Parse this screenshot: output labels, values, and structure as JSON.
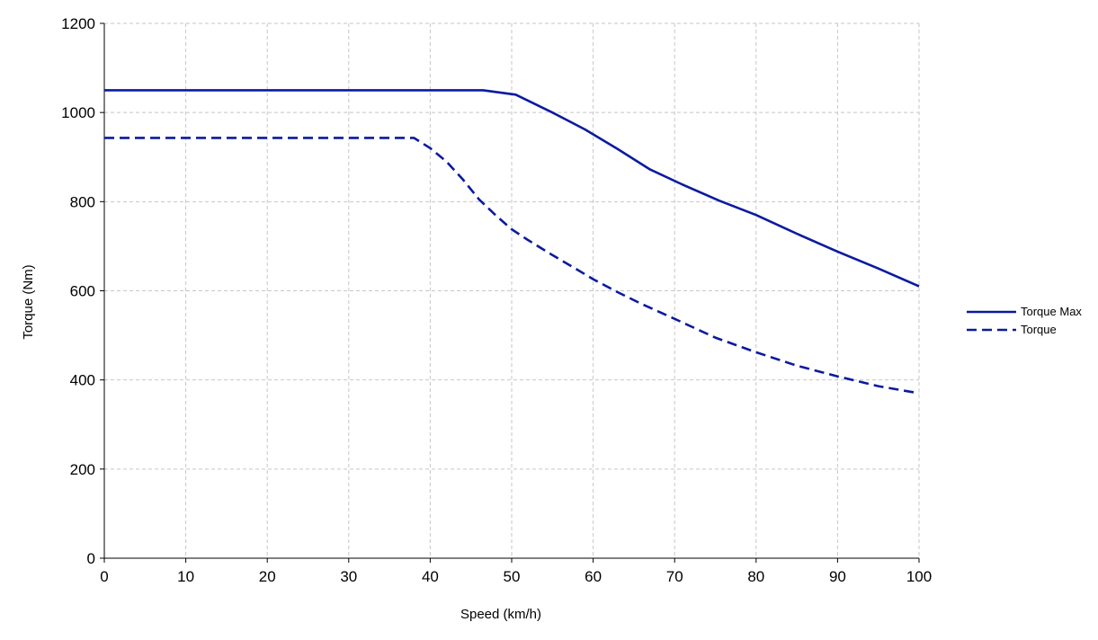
{
  "chart_data": {
    "type": "line",
    "xlabel": "Speed (km/h)",
    "ylabel": "Torque (Nm)",
    "xlim": [
      0,
      100
    ],
    "ylim": [
      0,
      1200
    ],
    "x_ticks": [
      0,
      10,
      20,
      30,
      40,
      50,
      60,
      70,
      80,
      90,
      100
    ],
    "y_ticks": [
      0,
      200,
      400,
      600,
      800,
      1000,
      1200
    ],
    "grid": true,
    "legend_position": "right",
    "series": [
      {
        "name": "Torque Max",
        "style": "solid",
        "color": "#0a1aa0",
        "x": [
          0,
          10,
          20,
          30,
          40,
          46.5,
          50.5,
          55,
          59,
          63,
          67,
          71,
          75.5,
          80,
          85,
          90,
          95,
          100
        ],
        "y": [
          1050,
          1050,
          1050,
          1050,
          1050,
          1050,
          1040,
          1000,
          962,
          918,
          872,
          838,
          802,
          770,
          728,
          688,
          650,
          610
        ]
      },
      {
        "name": "Torque",
        "style": "dashed",
        "color": "#0a1aa0",
        "x": [
          0,
          10,
          20,
          30,
          38,
          40,
          42,
          44,
          46,
          48,
          50,
          52,
          55,
          58,
          60,
          63,
          66,
          70,
          75,
          80,
          85,
          90,
          95,
          100
        ],
        "y": [
          943,
          943,
          943,
          943,
          943,
          920,
          890,
          850,
          805,
          770,
          738,
          714,
          680,
          648,
          626,
          597,
          570,
          537,
          495,
          462,
          432,
          408,
          386,
          370
        ]
      }
    ]
  }
}
